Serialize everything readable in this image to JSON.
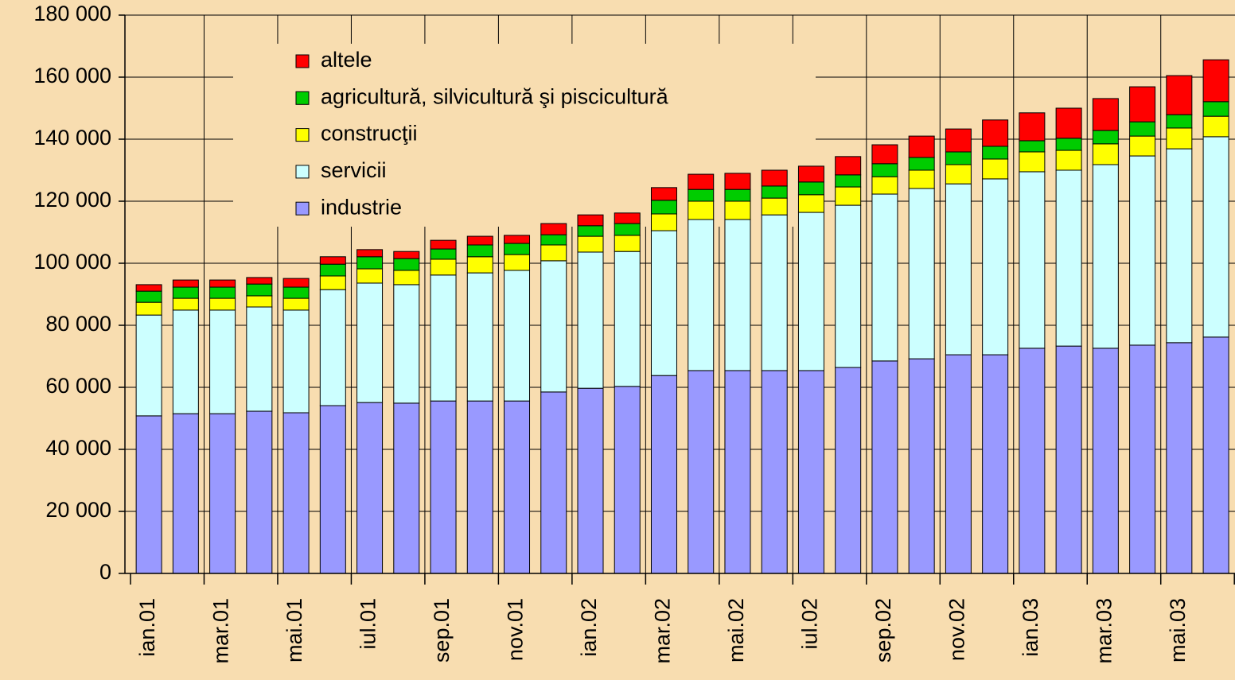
{
  "chart_data": {
    "type": "stacked_bar",
    "categories": [
      "ian.01",
      null,
      "mar.01",
      null,
      "mai.01",
      null,
      "iul.01",
      null,
      "sep.01",
      null,
      "nov.01",
      null,
      "ian.02",
      null,
      "mar.02",
      null,
      "mai.02",
      null,
      "iul.02",
      null,
      "sep.02",
      null,
      "nov.02",
      null,
      "ian.03",
      null,
      "mar.03",
      null,
      "mai.03",
      null
    ],
    "series": [
      {
        "name": "industrie",
        "color": "#9999ff",
        "values": [
          50800,
          51500,
          51500,
          52300,
          51800,
          54100,
          55100,
          54900,
          55600,
          55600,
          55600,
          58500,
          59700,
          60300,
          63800,
          65400,
          65400,
          65400,
          65400,
          66400,
          68500,
          69200,
          70500,
          70500,
          72600,
          73300,
          72600,
          73600,
          74400,
          76200
        ]
      },
      {
        "name": "servicii",
        "color": "#ccffff",
        "values": [
          32500,
          33400,
          33400,
          33600,
          33100,
          37400,
          38500,
          38200,
          40600,
          41300,
          42100,
          42300,
          43900,
          43500,
          46700,
          48700,
          48700,
          50200,
          51000,
          52300,
          53800,
          54900,
          55100,
          56700,
          56900,
          56700,
          59200,
          61000,
          62500,
          64600
        ]
      },
      {
        "name": "construcţii",
        "color": "#ffff00",
        "values": [
          4100,
          3800,
          3800,
          3600,
          3800,
          4400,
          4600,
          4600,
          5100,
          5200,
          5100,
          5100,
          5100,
          5200,
          5400,
          5900,
          5900,
          5400,
          5700,
          5900,
          5600,
          5900,
          6200,
          6400,
          6400,
          6400,
          6700,
          6400,
          6700,
          6600
        ]
      },
      {
        "name": "agricultură, silvicultură şi piscicultură",
        "color": "#00cc00",
        "values": [
          3600,
          3600,
          3600,
          3800,
          3600,
          3800,
          3900,
          3800,
          3300,
          3800,
          3600,
          3300,
          3400,
          3800,
          4400,
          3800,
          3800,
          3900,
          4100,
          3900,
          4200,
          4100,
          4100,
          4100,
          3600,
          3900,
          4300,
          4600,
          4300,
          4700
        ]
      },
      {
        "name": "altele",
        "color": "#ff0000",
        "values": [
          2100,
          2300,
          2300,
          2100,
          2800,
          2400,
          2300,
          2300,
          2800,
          2800,
          2600,
          3600,
          3500,
          3400,
          4100,
          4900,
          5200,
          5100,
          5100,
          5900,
          6100,
          6900,
          7400,
          8500,
          9000,
          9700,
          10300,
          11300,
          12600,
          13500
        ]
      }
    ],
    "ylim": [
      0,
      180000
    ],
    "yticks": [
      0,
      {
        "value": 20000,
        "label": "20 000"
      },
      {
        "value": 40000,
        "label": "40 000"
      },
      {
        "value": 60000,
        "label": "60 000"
      },
      {
        "value": 80000,
        "label": "80 000"
      },
      {
        "value": 100000,
        "label": "100 000"
      },
      {
        "value": 120000,
        "label": "120 000"
      },
      {
        "value": 140000,
        "label": "140 000"
      },
      {
        "value": 160000,
        "label": "160 000"
      },
      {
        "value": 180000,
        "label": "180 000"
      }
    ],
    "grid": true,
    "legend": "top-left"
  }
}
